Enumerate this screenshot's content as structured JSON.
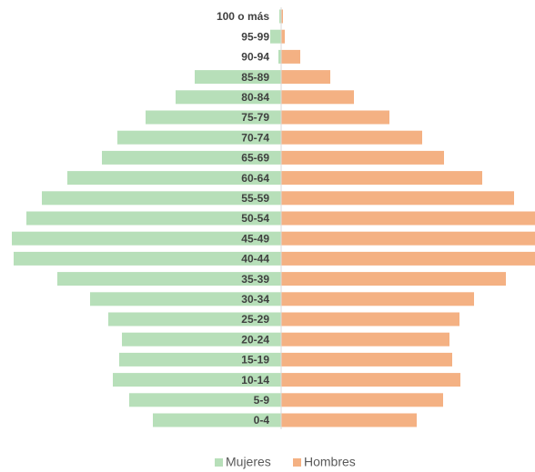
{
  "chart_data": {
    "type": "pyramid",
    "categories": [
      "100 o más",
      "95-99",
      "90-94",
      "85-89",
      "80-84",
      "75-79",
      "70-74",
      "65-69",
      "60-64",
      "55-59",
      "50-54",
      "45-49",
      "40-44",
      "35-39",
      "30-34",
      "25-29",
      "20-24",
      "15-19",
      "10-14",
      "5-9",
      "0-4"
    ],
    "series": [
      {
        "name": "Mujeres",
        "color": "#b7dfb9",
        "values": [
          2,
          12,
          3,
          95,
          116,
          149,
          180,
          197,
          235,
          263,
          280,
          296,
          294,
          246,
          210,
          190,
          175,
          178,
          185,
          167,
          141
        ]
      },
      {
        "name": "Hombres",
        "color": "#f4b183",
        "values": [
          2,
          4,
          21,
          54,
          80,
          119,
          155,
          179,
          221,
          256,
          279,
          279,
          279,
          247,
          212,
          196,
          185,
          188,
          197,
          178,
          149
        ]
      }
    ],
    "xlim": [
      -296,
      279
    ],
    "legend": "bottom"
  }
}
